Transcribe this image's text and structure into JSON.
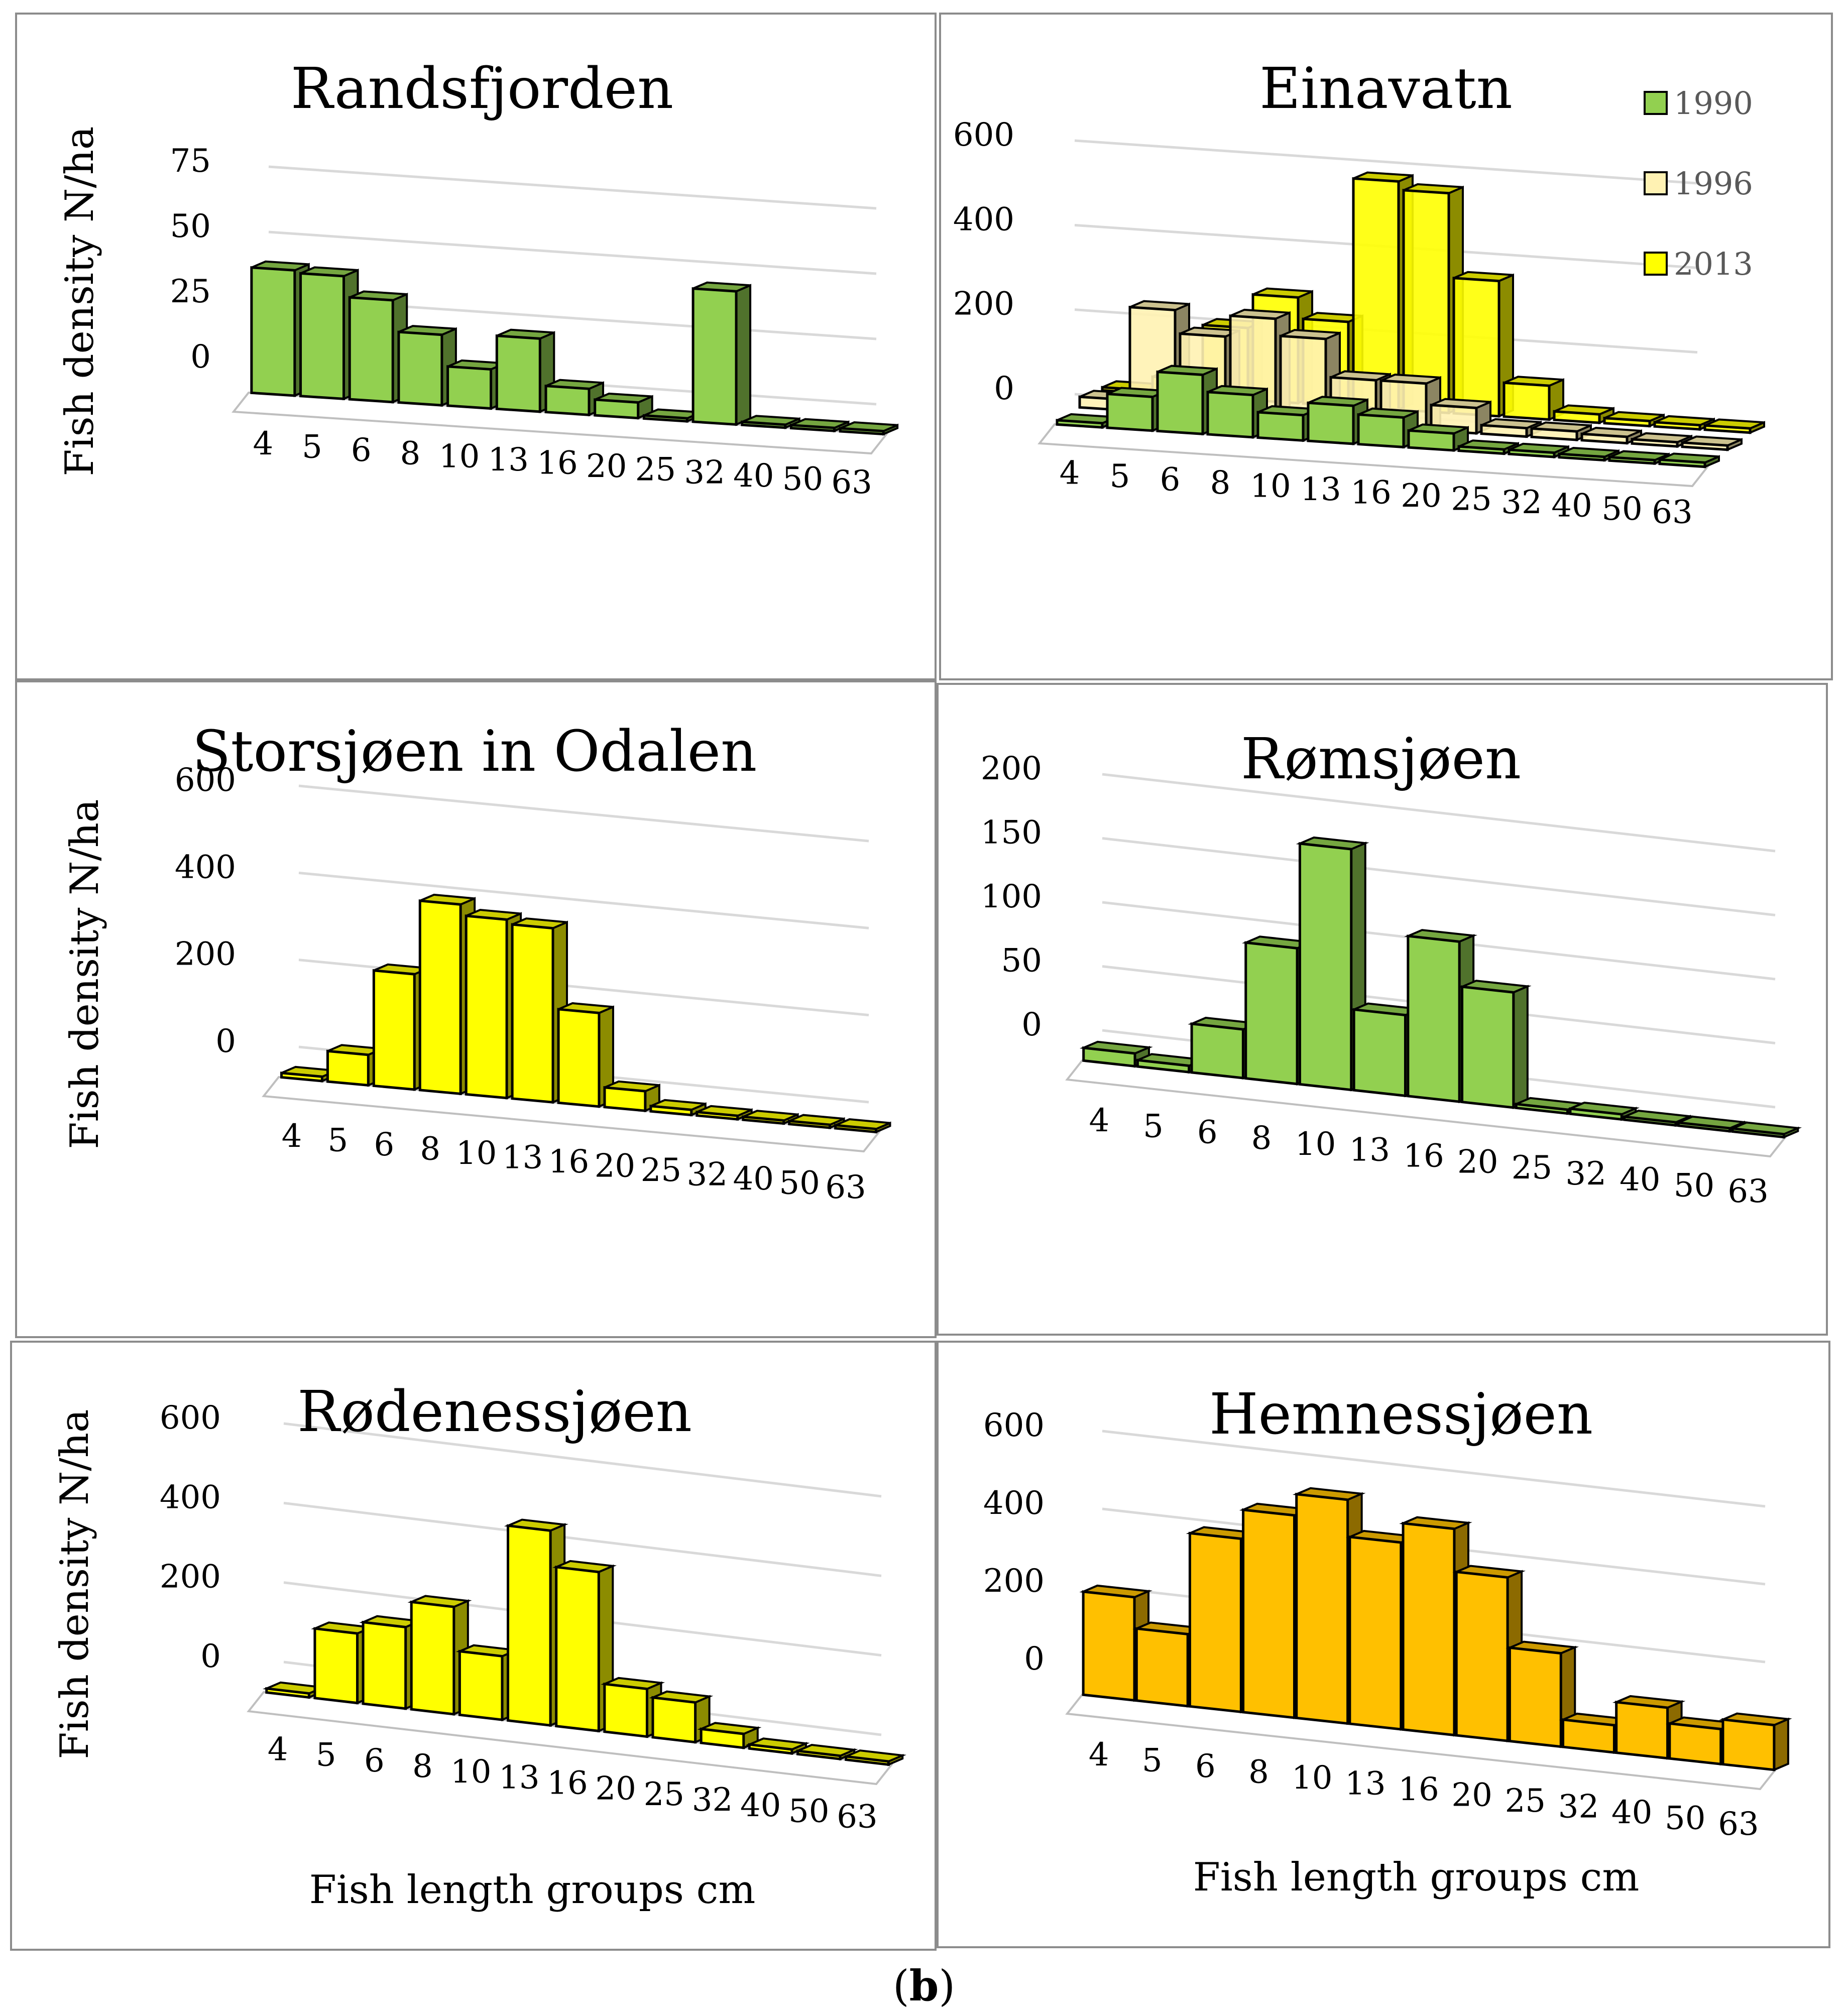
{
  "figure_label": "b",
  "categories": [
    "4",
    "5",
    "6",
    "8",
    "10",
    "13",
    "16",
    "20",
    "25",
    "32",
    "40",
    "50",
    "63"
  ],
  "y_axis_label": "Fish density N/ha",
  "x_axis_label": "Fish length groups cm",
  "colors": {
    "1990": "#92d050",
    "1996": "#fff2b3",
    "2013": "#ffff00",
    "hemnes": "#ffc000",
    "grid": "#d9d9d9",
    "outline": "#000000"
  },
  "legend": [
    {
      "label": "1990",
      "color": "#92d050"
    },
    {
      "label": "1996",
      "color": "#fff2b3"
    },
    {
      "label": "2013",
      "color": "#ffff00"
    }
  ],
  "chart_data": [
    {
      "type": "bar",
      "title": "Randsfjorden",
      "categories": [
        "4",
        "5",
        "6",
        "8",
        "10",
        "13",
        "16",
        "20",
        "25",
        "32",
        "40",
        "50",
        "63"
      ],
      "series": [
        {
          "name": "1990",
          "values": [
            48,
            47,
            39,
            27,
            15,
            28,
            10,
            6,
            1,
            51,
            1,
            0,
            0
          ]
        }
      ],
      "ylim": [
        0,
        75
      ],
      "yticks": [
        0,
        25,
        50,
        75
      ],
      "ylabel": "Fish density N/ha",
      "xlabel": ""
    },
    {
      "type": "bar",
      "title": "Einavatn",
      "categories": [
        "4",
        "5",
        "6",
        "8",
        "10",
        "13",
        "16",
        "20",
        "25",
        "32",
        "40",
        "50",
        "63"
      ],
      "series": [
        {
          "name": "1990",
          "values": [
            10,
            80,
            140,
            100,
            60,
            90,
            70,
            40,
            10,
            10,
            8,
            8,
            10
          ]
        },
        {
          "name": "1996",
          "values": [
            25,
            245,
            190,
            240,
            200,
            110,
            110,
            60,
            20,
            20,
            15,
            10,
            10
          ]
        },
        {
          "name": "2013",
          "values": [
            5,
            40,
            170,
            250,
            200,
            540,
            520,
            320,
            80,
            20,
            12,
            10,
            10
          ]
        }
      ],
      "ylim": [
        0,
        600
      ],
      "yticks": [
        0,
        200,
        400,
        600
      ],
      "ylabel": "",
      "xlabel": "",
      "legend_position": "top-right"
    },
    {
      "type": "bar",
      "title": "Storsjøen in Odalen",
      "categories": [
        "4",
        "5",
        "6",
        "8",
        "10",
        "13",
        "16",
        "20",
        "25",
        "32",
        "40",
        "50",
        "63"
      ],
      "series": [
        {
          "name": "2013",
          "values": [
            10,
            70,
            265,
            435,
            410,
            400,
            215,
            45,
            12,
            8,
            0,
            0,
            0
          ]
        }
      ],
      "ylim": [
        0,
        600
      ],
      "yticks": [
        0,
        200,
        400,
        600
      ],
      "ylabel": "Fish density N/ha",
      "xlabel": ""
    },
    {
      "type": "bar",
      "title": "Rømsjøen",
      "categories": [
        "4",
        "5",
        "6",
        "8",
        "10",
        "13",
        "16",
        "20",
        "25",
        "32",
        "40",
        "50",
        "63"
      ],
      "series": [
        {
          "name": "1990",
          "values": [
            10,
            5,
            38,
            106,
            188,
            63,
            125,
            90,
            3,
            4,
            0,
            0,
            0
          ]
        }
      ],
      "ylim": [
        0,
        200
      ],
      "yticks": [
        0,
        50,
        100,
        150,
        200
      ],
      "ylabel": "",
      "xlabel": ""
    },
    {
      "type": "bar",
      "title": "Rødenessjøen",
      "categories": [
        "4",
        "5",
        "6",
        "8",
        "10",
        "13",
        "16",
        "20",
        "25",
        "32",
        "40",
        "50",
        "63"
      ],
      "series": [
        {
          "name": "2013",
          "values": [
            10,
            175,
            205,
            270,
            160,
            490,
            400,
            120,
            100,
            35,
            10,
            8,
            8
          ]
        }
      ],
      "ylim": [
        0,
        600
      ],
      "yticks": [
        0,
        200,
        400,
        600
      ],
      "ylabel": "Fish density N/ha",
      "xlabel": "Fish length groups cm"
    },
    {
      "type": "bar",
      "title": "Hemnessjøen",
      "categories": [
        "4",
        "5",
        "6",
        "8",
        "10",
        "13",
        "16",
        "20",
        "25",
        "32",
        "40",
        "50",
        "63"
      ],
      "series": [
        {
          "name": "2013",
          "values": [
            265,
            185,
            445,
            520,
            575,
            480,
            530,
            420,
            240,
            70,
            130,
            90,
            115
          ]
        }
      ],
      "ylim": [
        0,
        600
      ],
      "yticks": [
        0,
        200,
        400,
        600
      ],
      "ylabel": "",
      "xlabel": "Fish length groups cm"
    }
  ]
}
